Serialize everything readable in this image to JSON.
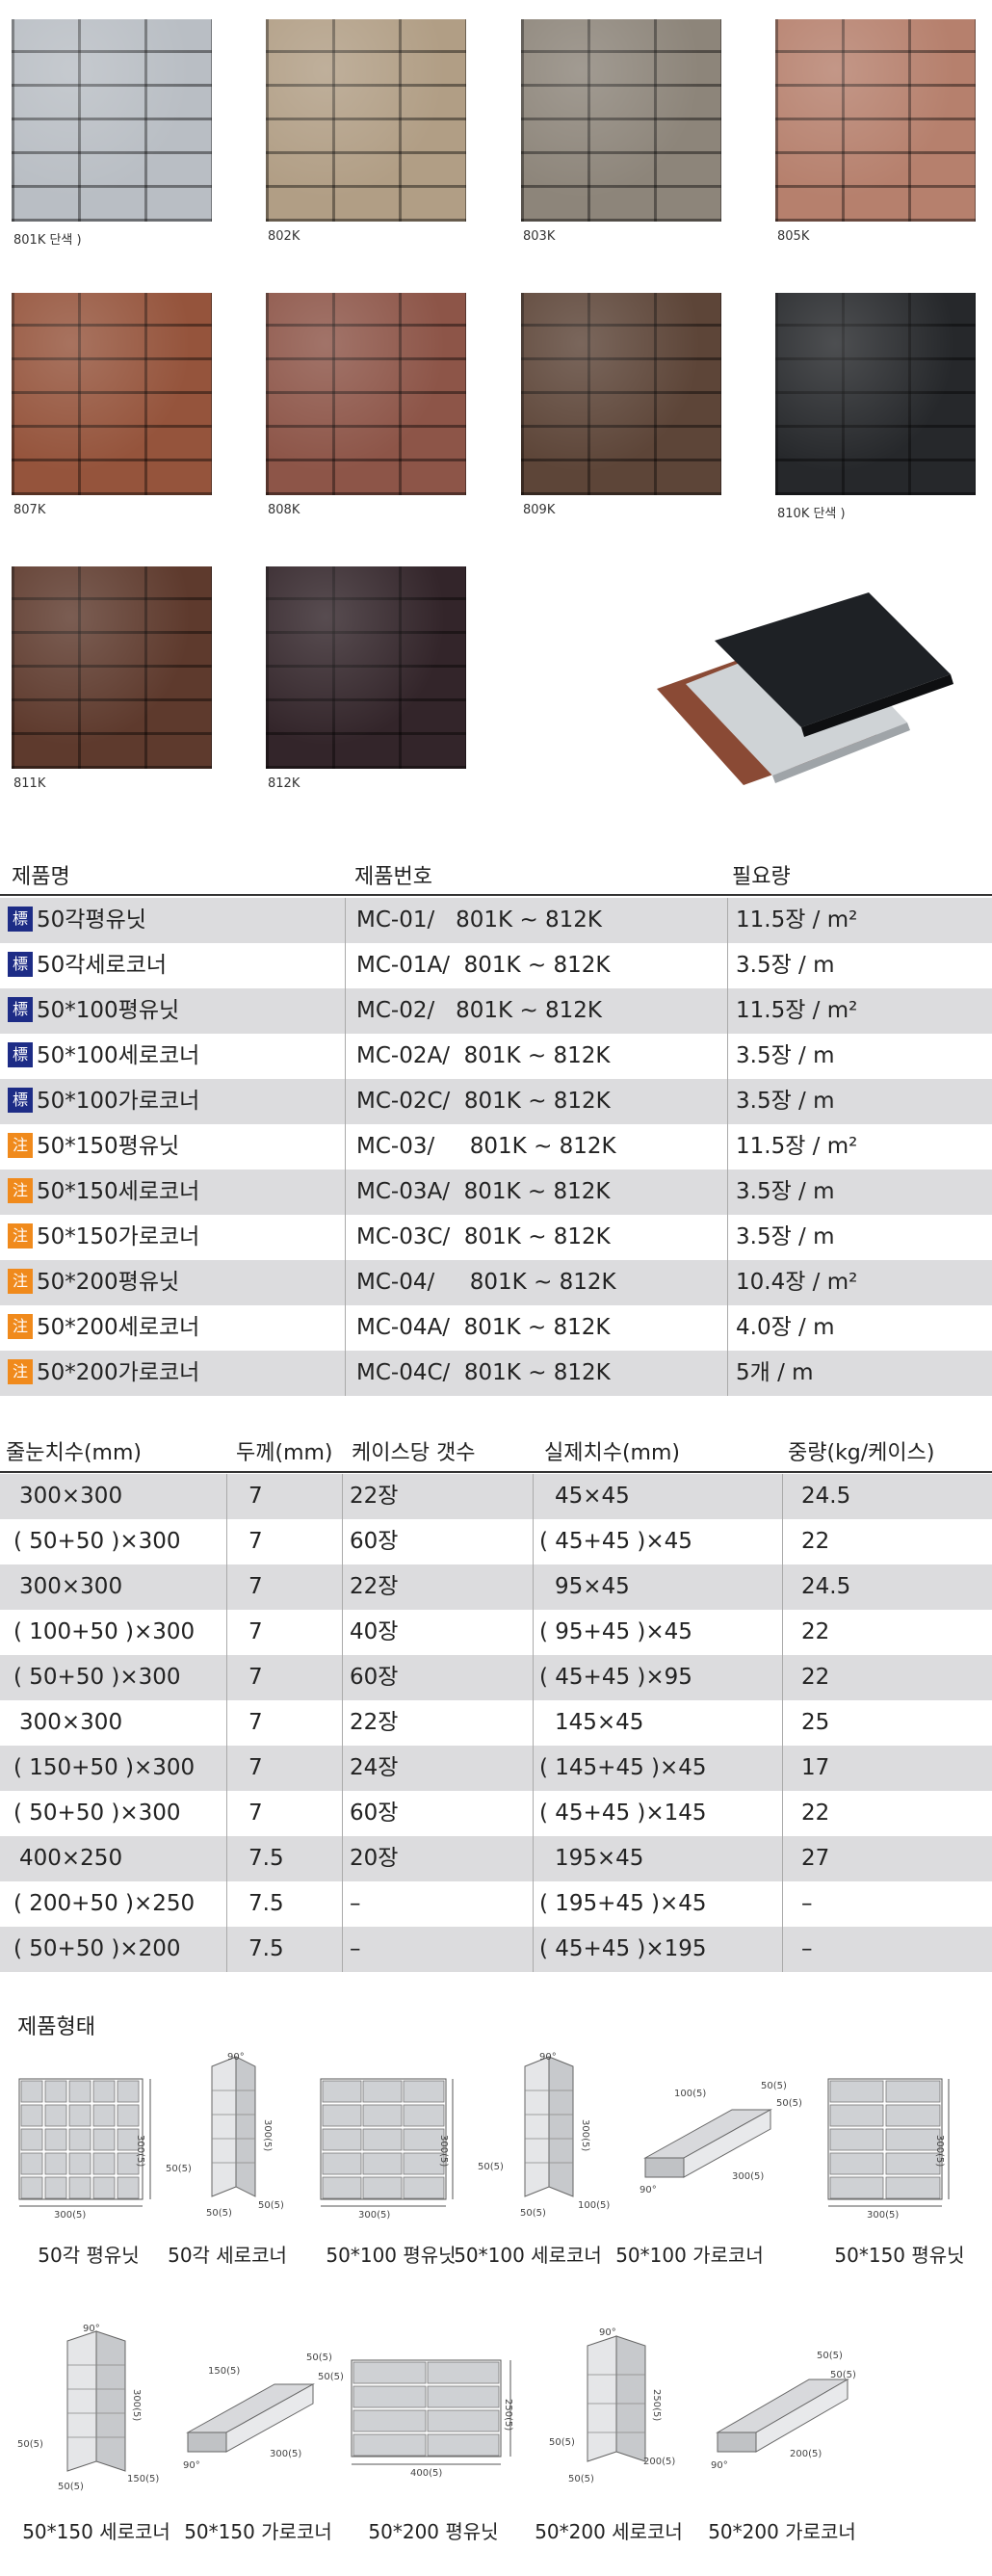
{
  "swatches": [
    {
      "code": "801K 단색 )",
      "color": "#b9bec4"
    },
    {
      "code": "802K",
      "color": "#b19e85"
    },
    {
      "code": "803K",
      "color": "#8d857a"
    },
    {
      "code": "805K",
      "color": "#b6806d"
    },
    {
      "code": "807K",
      "color": "#95543c"
    },
    {
      "code": "808K",
      "color": "#8d5548"
    },
    {
      "code": "809K",
      "color": "#5d4538"
    },
    {
      "code": "810K 단색 )",
      "color": "#26282b"
    },
    {
      "code": "811K",
      "color": "#5e3a2d"
    },
    {
      "code": "812K",
      "color": "#33252a"
    }
  ],
  "product_table": {
    "headers": [
      "제품명",
      "제품번호",
      "필요량"
    ],
    "rows": [
      {
        "badge": "標",
        "badge_color": "#1d2c86",
        "name": "50각평유닛",
        "code": "MC-01/   801K ~ 812K",
        "qty": "11.5장 / m²"
      },
      {
        "badge": "標",
        "badge_color": "#1d2c86",
        "name": "50각세로코너",
        "code": "MC-01A/  801K ~ 812K",
        "qty": "3.5장 / m"
      },
      {
        "badge": "標",
        "badge_color": "#1d2c86",
        "name": "50*100평유닛",
        "code": "MC-02/   801K ~ 812K",
        "qty": "11.5장 / m²"
      },
      {
        "badge": "標",
        "badge_color": "#1d2c86",
        "name": "50*100세로코너",
        "code": "MC-02A/  801K ~ 812K",
        "qty": "3.5장 / m"
      },
      {
        "badge": "標",
        "badge_color": "#1d2c86",
        "name": "50*100가로코너",
        "code": "MC-02C/  801K ~ 812K",
        "qty": "3.5장 / m"
      },
      {
        "badge": "注",
        "badge_color": "#f08a1c",
        "name": "50*150평유닛",
        "code": "MC-03/     801K ~ 812K",
        "qty": "11.5장 / m²"
      },
      {
        "badge": "注",
        "badge_color": "#f08a1c",
        "name": "50*150세로코너",
        "code": "MC-03A/  801K ~ 812K",
        "qty": "3.5장 / m"
      },
      {
        "badge": "注",
        "badge_color": "#f08a1c",
        "name": "50*150가로코너",
        "code": "MC-03C/  801K ~ 812K",
        "qty": "3.5장 / m"
      },
      {
        "badge": "注",
        "badge_color": "#f08a1c",
        "name": "50*200평유닛",
        "code": "MC-04/     801K ~ 812K",
        "qty": "10.4장 / m²"
      },
      {
        "badge": "注",
        "badge_color": "#f08a1c",
        "name": "50*200세로코너",
        "code": "MC-04A/  801K ~ 812K",
        "qty": "4.0장 / m"
      },
      {
        "badge": "注",
        "badge_color": "#f08a1c",
        "name": "50*200가로코너",
        "code": "MC-04C/  801K ~ 812K",
        "qty": "5개 / m"
      }
    ]
  },
  "spec_table": {
    "headers": [
      "줄눈치수(mm)",
      "두께(mm)",
      "케이스당 갯수",
      "실제치수(mm)",
      "중량(kg/케이스)"
    ],
    "rows": [
      [
        "300×300",
        "7",
        "22장",
        "45×45",
        "24.5"
      ],
      [
        "( 50+50 )×300",
        "7",
        "60장",
        "( 45+45 )×45",
        "22"
      ],
      [
        "300×300",
        "7",
        "22장",
        "95×45",
        "24.5"
      ],
      [
        "( 100+50 )×300",
        "7",
        "40장",
        "( 95+45 )×45",
        "22"
      ],
      [
        "( 50+50 )×300",
        "7",
        "60장",
        "( 45+45 )×95",
        "22"
      ],
      [
        "300×300",
        "7",
        "22장",
        "145×45",
        "25"
      ],
      [
        "( 150+50 )×300",
        "7",
        "24장",
        "( 145+45 )×45",
        "17"
      ],
      [
        "( 50+50 )×300",
        "7",
        "60장",
        "( 45+45 )×145",
        "22"
      ],
      [
        "400×250",
        "7.5",
        "20장",
        "195×45",
        "27"
      ],
      [
        "( 200+50 )×250",
        "7.5",
        "–",
        "( 195+45 )×45",
        "–"
      ],
      [
        "( 50+50 )×200",
        "7.5",
        "–",
        "( 45+45 )×195",
        "–"
      ]
    ]
  },
  "shapes_title": "제품형태",
  "shapes_row1": [
    "50각 평유닛",
    "50각 세로코너",
    "50*100 평유닛",
    "50*100 세로코너",
    "50*100 가로코너",
    "50*150 평유닛"
  ],
  "shapes_row2": [
    "50*150 세로코너",
    "50*150 가로코너",
    "50*200 평유닛",
    "50*200 세로코너",
    "50*200 가로코너"
  ],
  "dims": {
    "d300": "300(5)",
    "d50": "50(5)",
    "d90": "90°",
    "d100": "100(5)",
    "d150": "150(5)",
    "d200": "200(5)",
    "d250": "250(5)",
    "d400": "400(5)"
  }
}
